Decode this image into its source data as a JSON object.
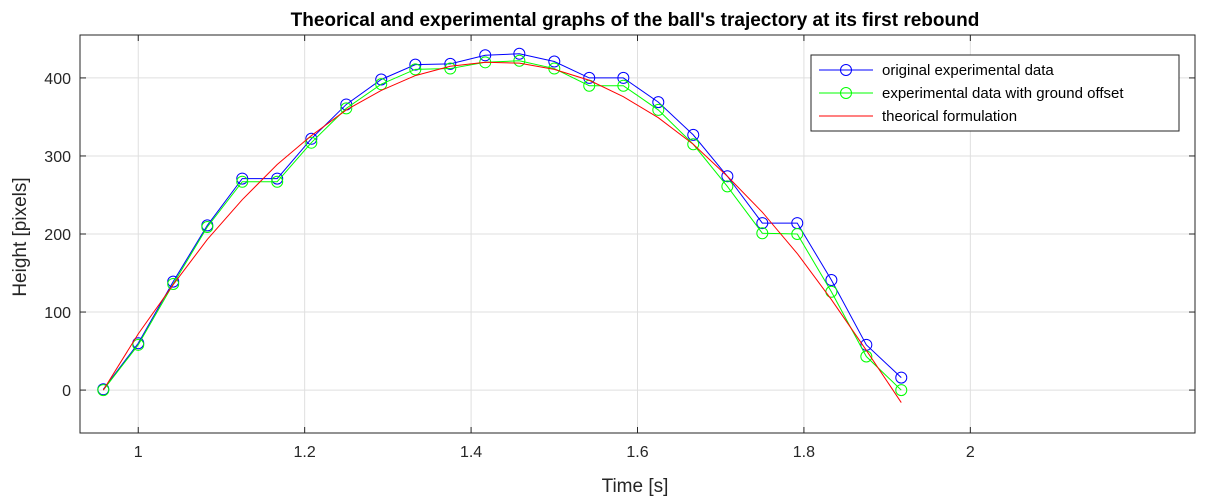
{
  "chart_data": {
    "type": "line",
    "title": "Theorical and experimental graphs of the ball's trajectory at its first rebound",
    "xlabel": "Time [s]",
    "ylabel": "Height [pixels]",
    "xlim": [
      0.93,
      2.27
    ],
    "ylim": [
      -55,
      455
    ],
    "xticks": [
      1,
      1.2,
      1.4,
      1.6,
      1.8,
      2
    ],
    "xtick_labels": [
      "1",
      "1.2",
      "1.4",
      "1.6",
      "1.8",
      "2"
    ],
    "yticks": [
      0,
      100,
      200,
      300,
      400
    ],
    "ytick_labels": [
      "0",
      "100",
      "200",
      "300",
      "400"
    ],
    "grid": true,
    "legend_position": "top-right",
    "series": [
      {
        "name": "original experimental data",
        "color": "#0000ff",
        "marker": "circle",
        "x": [
          0.958,
          1.0,
          1.042,
          1.083,
          1.125,
          1.167,
          1.208,
          1.25,
          1.292,
          1.333,
          1.375,
          1.417,
          1.458,
          1.5,
          1.542,
          1.583,
          1.625,
          1.667,
          1.708,
          1.75,
          1.792,
          1.833,
          1.875,
          1.917
        ],
        "y": [
          1,
          60,
          139,
          211,
          271,
          271,
          322,
          366,
          398,
          417,
          418,
          429,
          431,
          421,
          400,
          400,
          369,
          327,
          274,
          214,
          214,
          141,
          58,
          16
        ]
      },
      {
        "name": "experimental data with ground offset",
        "color": "#00ff00",
        "marker": "circle",
        "x": [
          0.958,
          1.0,
          1.042,
          1.083,
          1.125,
          1.167,
          1.208,
          1.25,
          1.292,
          1.333,
          1.375,
          1.417,
          1.458,
          1.5,
          1.542,
          1.583,
          1.625,
          1.667,
          1.708,
          1.75,
          1.792,
          1.833,
          1.875,
          1.917
        ],
        "y": [
          0,
          58,
          136,
          209,
          267,
          267,
          317,
          361,
          392,
          411,
          412,
          420,
          422,
          412,
          390,
          390,
          359,
          315,
          261,
          201,
          200,
          126,
          43,
          0
        ]
      },
      {
        "name": "theorical formulation",
        "color": "#ff0000",
        "marker": "none",
        "x": [
          0.958,
          1.0,
          1.042,
          1.083,
          1.125,
          1.167,
          1.208,
          1.25,
          1.292,
          1.333,
          1.375,
          1.417,
          1.458,
          1.5,
          1.542,
          1.583,
          1.625,
          1.667,
          1.708,
          1.75,
          1.792,
          1.833,
          1.875,
          1.917
        ],
        "y": [
          0,
          72,
          135,
          193,
          244,
          289,
          326,
          359,
          384,
          403,
          415,
          420,
          419,
          411,
          397,
          376,
          349,
          315,
          274,
          228,
          175,
          116,
          51,
          -16
        ]
      }
    ]
  }
}
